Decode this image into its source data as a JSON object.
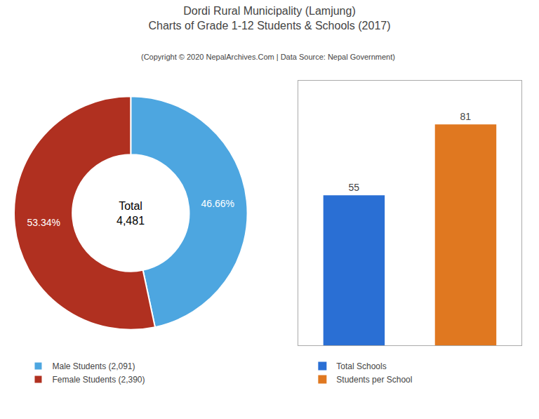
{
  "title": [
    "Dordi Rural Municipality (Lamjung)",
    "Charts of Grade 1-12 Students & Schools (2017)"
  ],
  "subtitle": "(Copyright © 2020 NepalArchives.Com | Data Source: Nepal Government)",
  "chart_data": [
    {
      "type": "donut",
      "categories": [
        "Male Students (2,091)",
        "Female Students (2,390)"
      ],
      "values": [
        46.66,
        53.34
      ],
      "value_labels": [
        "46.66%",
        "53.34%"
      ],
      "data_labels": true,
      "colors": [
        "#4da6e0",
        "#b03020"
      ],
      "annotations": [
        "Total",
        "4,481"
      ],
      "legend": "lower left"
    },
    {
      "type": "bar",
      "categories": [
        "Total Schools",
        "Students per School"
      ],
      "values": [
        55,
        81
      ],
      "colors": [
        "#2a6fd4",
        "#e07820"
      ],
      "ylim": [
        0,
        97
      ],
      "yticks": [],
      "tick_labels": false,
      "grid": false,
      "data_labels": true,
      "legend": "lower left"
    }
  ]
}
